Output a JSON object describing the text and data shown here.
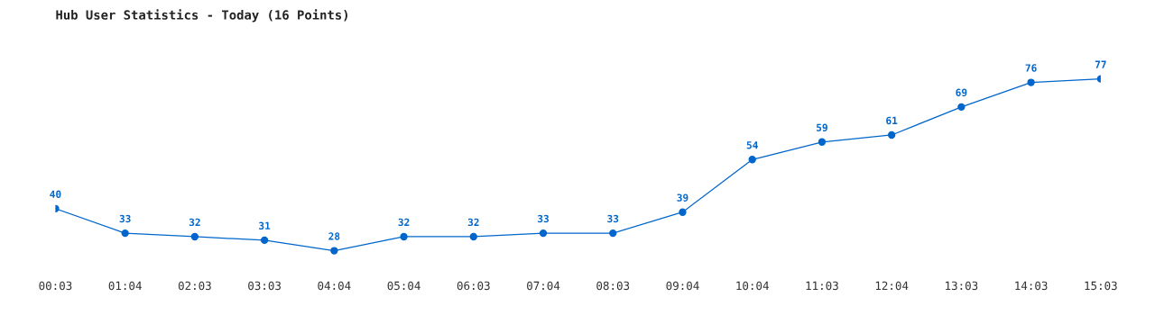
{
  "chart_data": {
    "type": "line",
    "title": "Hub User Statistics - Today (16 Points)",
    "categories": [
      "00:03",
      "01:04",
      "02:03",
      "03:03",
      "04:04",
      "05:04",
      "06:03",
      "07:04",
      "08:03",
      "09:04",
      "10:04",
      "11:03",
      "12:04",
      "13:03",
      "14:03",
      "15:03"
    ],
    "series": [
      {
        "color": "#0066cc",
        "values": [
          40,
          33,
          32,
          31,
          28,
          32,
          32,
          33,
          33,
          39,
          54,
          59,
          61,
          69,
          76,
          77
        ]
      }
    ],
    "data_labels": true,
    "marker": "circle",
    "grid": false,
    "legend": false
  }
}
